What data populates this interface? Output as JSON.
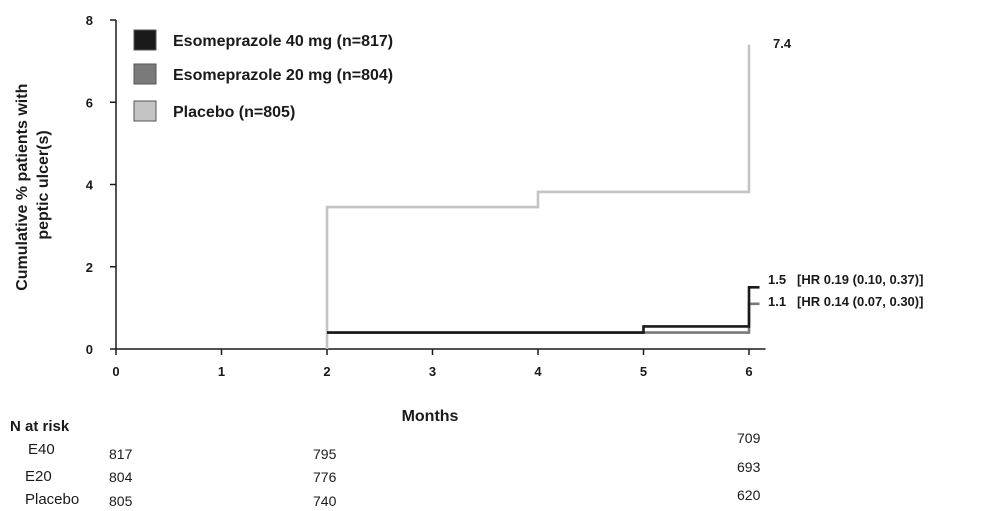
{
  "chart_data": {
    "type": "line",
    "xlabel": "Months",
    "ylabel_lines": [
      "Cumulative % patients with",
      "peptic ulcer(s)"
    ],
    "xlim": [
      0,
      6.1
    ],
    "ylim": [
      0,
      8
    ],
    "xticks": [
      "0",
      "1",
      "2",
      "3",
      "4",
      "5",
      "6"
    ],
    "yticks": [
      "0",
      "2",
      "4",
      "6",
      "8"
    ],
    "grid": false,
    "legend_position": "top-left",
    "series": [
      {
        "name": "Esomeprazole 40 mg (n=817)",
        "color": "#1a1a1a",
        "x": [
          2,
          5,
          5,
          6,
          6,
          6.1
        ],
        "y": [
          0.4,
          0.4,
          0.55,
          0.55,
          1.5,
          1.5
        ],
        "end_value": "1.5",
        "end_annotation": "[HR 0.19 (0.10, 0.37)]"
      },
      {
        "name": "Esomeprazole 20 mg (n=804)",
        "color": "#7a7a7a",
        "x": [
          2,
          6,
          6,
          6.1
        ],
        "y": [
          0.4,
          0.4,
          1.1,
          1.1
        ],
        "end_value": "1.1",
        "end_annotation": "[HR 0.14 (0.07, 0.30)]"
      },
      {
        "name": "Placebo (n=805)",
        "color": "#c4c4c4",
        "x": [
          2,
          2,
          4,
          4,
          6,
          6
        ],
        "y": [
          0,
          3.45,
          3.45,
          3.82,
          3.82,
          7.4
        ],
        "end_value": "7.4",
        "end_annotation": ""
      }
    ],
    "risk_table": {
      "title": "N at risk",
      "rows": [
        {
          "label": "E40",
          "values": [
            "817",
            "795",
            "709"
          ]
        },
        {
          "label": "E20",
          "values": [
            "804",
            "776",
            "693"
          ]
        },
        {
          "label": "Placebo",
          "values": [
            "805",
            "740",
            "620"
          ]
        }
      ]
    }
  }
}
